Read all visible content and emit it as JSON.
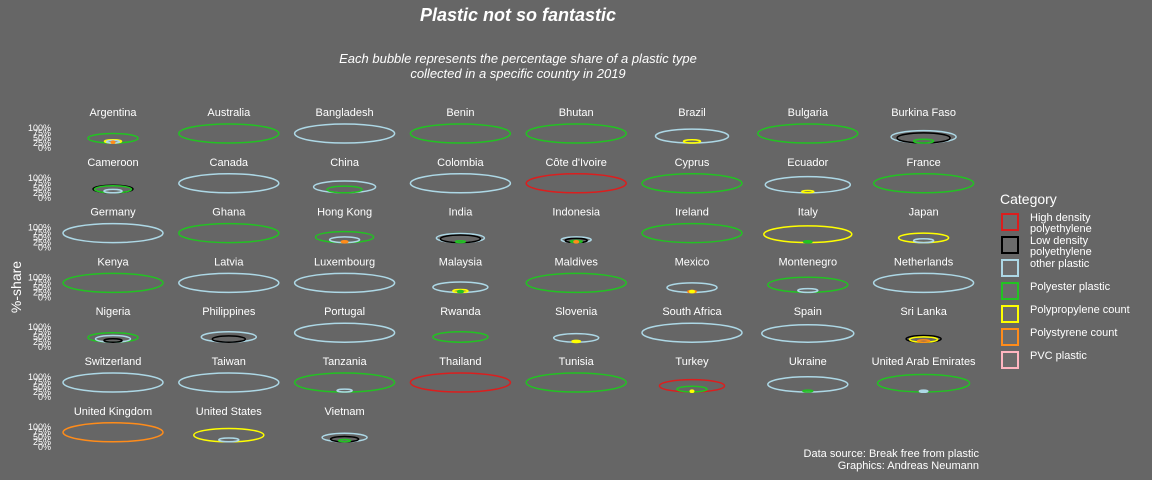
{
  "chart_data": {
    "type": "bubble-facets",
    "title": "Plastic not so fantastic",
    "subtitle_lines": [
      "Each bubble represents the percentage share of a plastic type",
      "collected in a specific country in 2019"
    ],
    "ylabel": "%-share",
    "y_ticks": [
      "100%",
      "75%",
      "50%",
      "25%",
      "0%"
    ],
    "ylim": [
      0,
      100
    ],
    "legend": {
      "title": "Category",
      "placement": "right",
      "items": [
        {
          "key": "hdpe",
          "label": "High density polyethylene",
          "color": "#dc1e1e"
        },
        {
          "key": "ldpe",
          "label": "Low density polyethylene",
          "color": "#000000"
        },
        {
          "key": "o",
          "label": "other plastic",
          "color": "#add8e6"
        },
        {
          "key": "pet",
          "label": "Polyester plastic",
          "color": "#22c322"
        },
        {
          "key": "pp",
          "label": "Polypropylene count",
          "color": "#ffff00"
        },
        {
          "key": "ps",
          "label": "Polystyrene count",
          "color": "#ff8c1a"
        },
        {
          "key": "pvc",
          "label": "PVC plastic",
          "color": "#ffb6c1"
        }
      ]
    },
    "panels": [
      {
        "country": "Argentina",
        "shares": {
          "pet": 50,
          "pp": 17,
          "o": 13,
          "ps": 3
        }
      },
      {
        "country": "Australia",
        "shares": {
          "pet": 100
        }
      },
      {
        "country": "Bangladesh",
        "shares": {
          "o": 100
        }
      },
      {
        "country": "Benin",
        "shares": {
          "pet": 100
        }
      },
      {
        "country": "Bhutan",
        "shares": {
          "pet": 100
        }
      },
      {
        "country": "Brazil",
        "shares": {
          "o": 73,
          "pp": 17
        }
      },
      {
        "country": "Bulgaria",
        "shares": {
          "pet": 100
        }
      },
      {
        "country": "Burkina Faso",
        "shares": {
          "o": 65,
          "ldpe": 53,
          "pet": 20
        }
      },
      {
        "country": "Cameroon",
        "shares": {
          "ldpe": 40,
          "pet": 37,
          "o": 18
        }
      },
      {
        "country": "Canada",
        "shares": {
          "o": 100
        }
      },
      {
        "country": "China",
        "shares": {
          "o": 62,
          "pet": 35
        }
      },
      {
        "country": "Colombia",
        "shares": {
          "o": 100
        }
      },
      {
        "country": "Côte d'Ivoire",
        "shares": {
          "hdpe": 100
        }
      },
      {
        "country": "Cyprus",
        "shares": {
          "pet": 100
        }
      },
      {
        "country": "Ecuador",
        "shares": {
          "o": 85,
          "pp": 12
        }
      },
      {
        "country": "France",
        "shares": {
          "pet": 100
        }
      },
      {
        "country": "Germany",
        "shares": {
          "o": 100
        }
      },
      {
        "country": "Ghana",
        "shares": {
          "pet": 100
        }
      },
      {
        "country": "Hong Kong",
        "shares": {
          "pet": 58,
          "o": 30,
          "ps": 6
        }
      },
      {
        "country": "India",
        "shares": {
          "o": 48,
          "ldpe": 40,
          "pet": 10
        }
      },
      {
        "country": "Indonesia",
        "shares": {
          "o": 30,
          "ldpe": 22,
          "pet": 12,
          "ps": 4
        }
      },
      {
        "country": "Ireland",
        "shares": {
          "pet": 100
        }
      },
      {
        "country": "Italy",
        "shares": {
          "pp": 88,
          "pet": 8
        }
      },
      {
        "country": "Japan",
        "shares": {
          "pp": 50,
          "o": 20
        }
      },
      {
        "country": "Kenya",
        "shares": {
          "pet": 100
        }
      },
      {
        "country": "Latvia",
        "shares": {
          "o": 100
        }
      },
      {
        "country": "Luxembourg",
        "shares": {
          "o": 100
        }
      },
      {
        "country": "Malaysia",
        "shares": {
          "o": 55,
          "pp": 15,
          "pet": 5
        }
      },
      {
        "country": "Maldives",
        "shares": {
          "pet": 100
        }
      },
      {
        "country": "Mexico",
        "shares": {
          "o": 50,
          "ps": 8,
          "pp": 4
        }
      },
      {
        "country": "Montenegro",
        "shares": {
          "pet": 80,
          "o": 20
        }
      },
      {
        "country": "Netherlands",
        "shares": {
          "o": 100
        }
      },
      {
        "country": "Nigeria",
        "shares": {
          "pet": 50,
          "o": 35,
          "ldpe": 18
        }
      },
      {
        "country": "Philippines",
        "shares": {
          "o": 55,
          "ldpe": 33
        }
      },
      {
        "country": "Portugal",
        "shares": {
          "o": 100
        }
      },
      {
        "country": "Rwanda",
        "shares": {
          "pet": 55
        }
      },
      {
        "country": "Slovenia",
        "shares": {
          "o": 45,
          "pp": 8
        }
      },
      {
        "country": "South Africa",
        "shares": {
          "o": 100
        }
      },
      {
        "country": "Spain",
        "shares": {
          "o": 92
        }
      },
      {
        "country": "Sri Lanka",
        "shares": {
          "ldpe": 35,
          "pp": 28,
          "ps": 12
        }
      },
      {
        "country": "Switzerland",
        "shares": {
          "o": 100
        }
      },
      {
        "country": "Taiwan",
        "shares": {
          "o": 100
        }
      },
      {
        "country": "Tanzania",
        "shares": {
          "pet": 100,
          "o": 15
        }
      },
      {
        "country": "Thailand",
        "shares": {
          "hdpe": 100
        }
      },
      {
        "country": "Tunisia",
        "shares": {
          "pet": 100
        }
      },
      {
        "country": "Turkey",
        "shares": {
          "hdpe": 65,
          "pet": 30,
          "pp": 3
        }
      },
      {
        "country": "Ukraine",
        "shares": {
          "o": 80,
          "pet": 10
        }
      },
      {
        "country": "United Arab Emirates",
        "shares": {
          "pet": 92,
          "o": 8
        }
      },
      {
        "country": "United Kingdom",
        "shares": {
          "ps": 100
        }
      },
      {
        "country": "United States",
        "shares": {
          "pp": 70,
          "o": 20
        }
      },
      {
        "country": "Vietnam",
        "shares": {
          "o": 45,
          "ldpe": 28,
          "pet": 12
        }
      }
    ]
  },
  "caption_lines": [
    "Data source: Break free from plastic",
    "Graphics: Andreas Neumann"
  ]
}
